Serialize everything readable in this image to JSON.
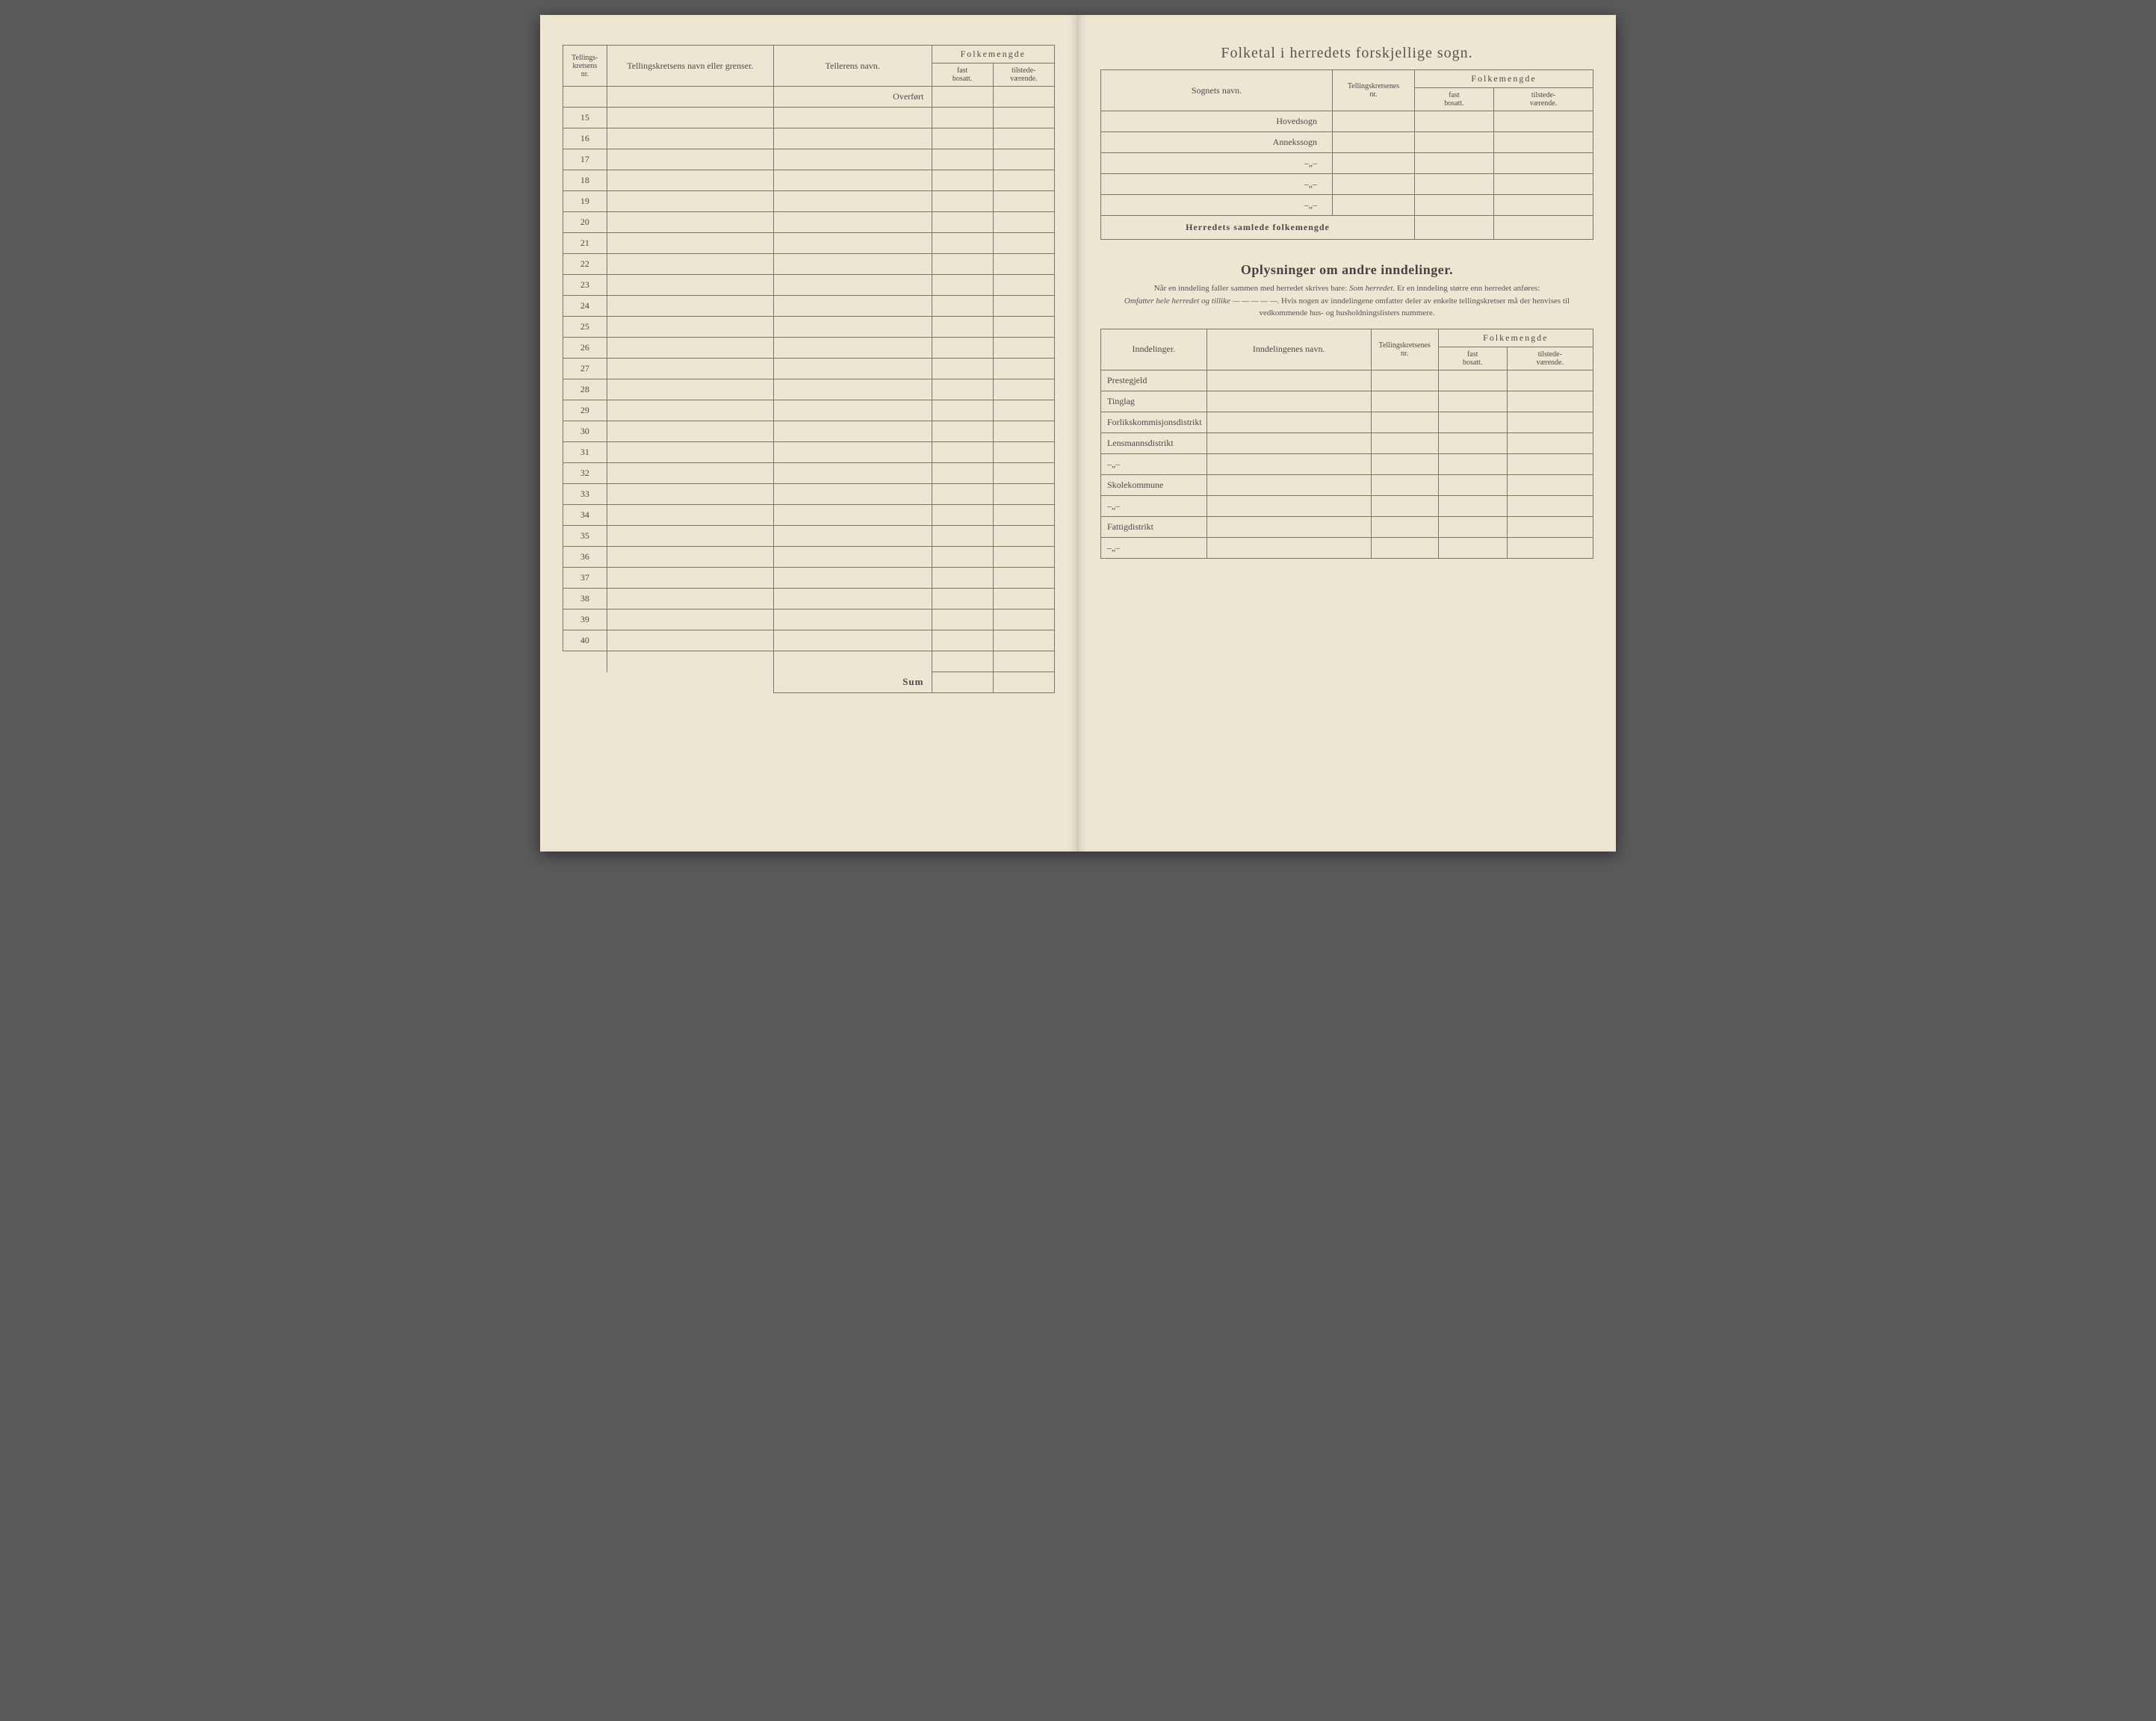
{
  "left_table": {
    "headers": {
      "col1_l1": "Tellings-",
      "col1_l2": "kretsens",
      "col1_l3": "nr.",
      "col2": "Tellingskretsens navn eller grenser.",
      "col3": "Tellerens navn.",
      "col4": "Folkemengde",
      "col4a_l1": "fast",
      "col4a_l2": "bosatt.",
      "col4b_l1": "tilstede-",
      "col4b_l2": "værende."
    },
    "overfort": "Overført",
    "row_numbers": [
      "15",
      "16",
      "17",
      "18",
      "19",
      "20",
      "21",
      "22",
      "23",
      "24",
      "25",
      "26",
      "27",
      "28",
      "29",
      "30",
      "31",
      "32",
      "33",
      "34",
      "35",
      "36",
      "37",
      "38",
      "39",
      "40"
    ],
    "sum_label": "Sum"
  },
  "right_top": {
    "title": "Folketal i herredets forskjellige sogn.",
    "headers": {
      "col1": "Sognets navn.",
      "col2_l1": "Tellingskretsenes",
      "col2_l2": "nr.",
      "col3": "Folkemengde",
      "col3a_l1": "fast",
      "col3a_l2": "bosatt.",
      "col3b_l1": "tilstede-",
      "col3b_l2": "værende."
    },
    "rows": [
      "Hovedsogn",
      "Annekssogn",
      "–„–",
      "–„–",
      "–„–"
    ],
    "summary": "Herredets samlede folkemengde"
  },
  "right_bottom": {
    "title": "Oplysninger om andre inndelinger.",
    "note_pre": "Når en inndeling faller sammen med herredet skrives bare: ",
    "note_it1": "Som herredet.",
    "note_mid": " Er en inndeling større enn herredet anføres: ",
    "note_it2": "Omfatter hele herredet og tillike — — — — —.",
    "note_post": " Hvis nogen av inndelingene omfatter deler av enkelte tellingskretser må der henvises til vedkommende hus- og husholdningslisters nummere.",
    "headers": {
      "col1": "Inndelinger.",
      "col2": "Inndelingenes navn.",
      "col3_l1": "Tellingskretsenes",
      "col3_l2": "nr.",
      "col4": "Folkemengde",
      "col4a_l1": "fast",
      "col4a_l2": "bosatt.",
      "col4b_l1": "tilstede-",
      "col4b_l2": "værende."
    },
    "rows": [
      "Prestegjeld",
      "Tinglag",
      "Forlikskommisjonsdistrikt",
      "Lensmannsdistrikt",
      "–„–",
      "Skolekommune",
      "–„–",
      "Fattigdistrikt",
      "–„–"
    ]
  }
}
